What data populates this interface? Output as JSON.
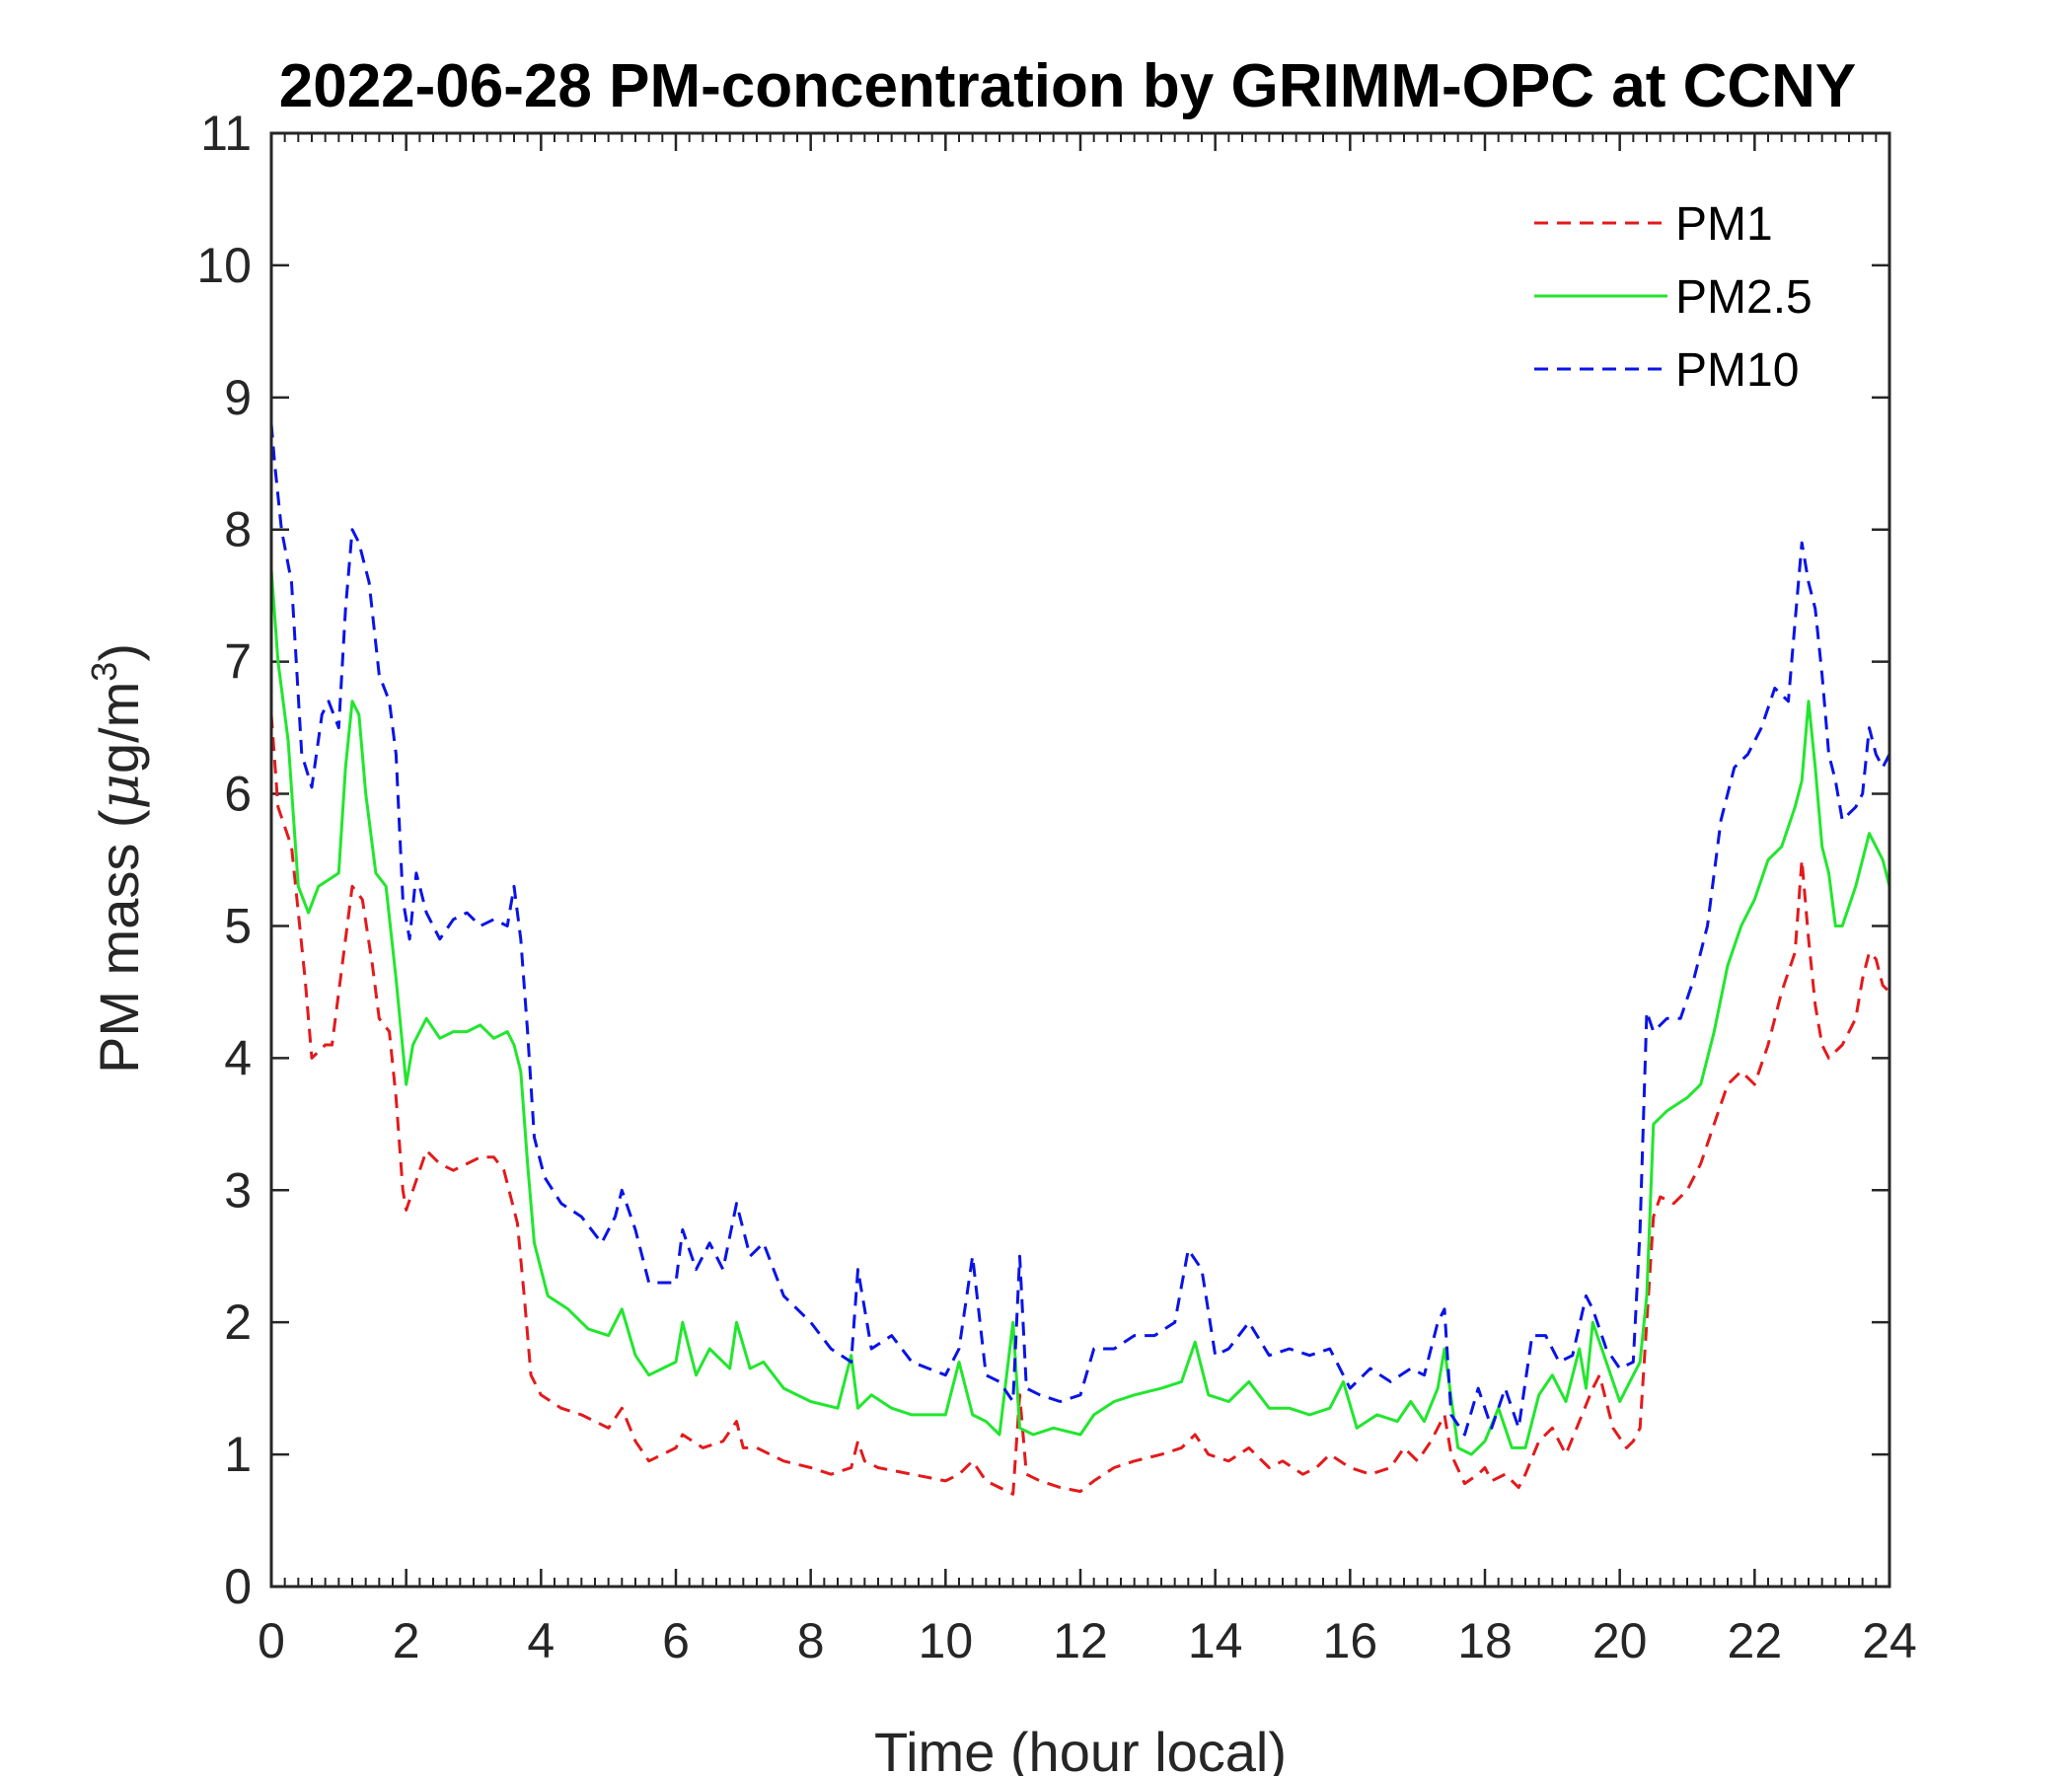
{
  "chart_data": {
    "type": "line",
    "title": "2022-06-28 PM-concentration by GRIMM-OPC at CCNY",
    "xlabel": "Time (hour local)",
    "ylabel": "PM mass (μg/m³)",
    "ylabel_parts": {
      "main": "PM mass (",
      "mu": "μ",
      "unit": "g/m",
      "sup": "3",
      "close": ")"
    },
    "xlim": [
      0,
      24
    ],
    "ylim": [
      0,
      11
    ],
    "xticks": [
      "0",
      "2",
      "4",
      "6",
      "8",
      "10",
      "12",
      "14",
      "16",
      "18",
      "20",
      "22",
      "24"
    ],
    "yticks": [
      "0",
      "1",
      "2",
      "3",
      "4",
      "5",
      "6",
      "7",
      "8",
      "9",
      "10",
      "11"
    ],
    "legend": {
      "location": "top-right"
    },
    "series": [
      {
        "name": "PM1",
        "color": "#e31a1c",
        "style": "dashed",
        "x": [
          0,
          0.1,
          0.3,
          0.5,
          0.6,
          0.8,
          0.9,
          1.1,
          1.2,
          1.35,
          1.5,
          1.6,
          1.75,
          1.85,
          1.95,
          2.0,
          2.1,
          2.3,
          2.5,
          2.7,
          2.9,
          3.1,
          3.3,
          3.45,
          3.55,
          3.65,
          3.75,
          3.85,
          4.0,
          4.3,
          4.6,
          5.0,
          5.2,
          5.4,
          5.6,
          5.8,
          6.0,
          6.1,
          6.4,
          6.7,
          6.9,
          7.0,
          7.2,
          7.6,
          8.0,
          8.3,
          8.6,
          8.7,
          8.8,
          9.0,
          9.5,
          10.0,
          10.2,
          10.4,
          10.6,
          10.8,
          11.0,
          11.1,
          11.2,
          11.4,
          11.7,
          12.0,
          12.2,
          12.5,
          12.8,
          13.2,
          13.5,
          13.7,
          13.9,
          14.2,
          14.5,
          14.8,
          15.0,
          15.3,
          15.5,
          15.7,
          16.0,
          16.3,
          16.6,
          16.8,
          17.0,
          17.2,
          17.4,
          17.5,
          17.7,
          17.9,
          18.0,
          18.1,
          18.3,
          18.5,
          18.6,
          18.8,
          19.0,
          19.2,
          19.4,
          19.6,
          19.7,
          19.9,
          20.1,
          20.2,
          20.3,
          20.4,
          20.5,
          20.6,
          20.8,
          21.0,
          21.2,
          21.4,
          21.6,
          21.8,
          22.0,
          22.2,
          22.4,
          22.6,
          22.7,
          22.8,
          22.9,
          23.0,
          23.1,
          23.2,
          23.3,
          23.5,
          23.6,
          23.7,
          23.8,
          23.9,
          24.0
        ],
        "values": [
          6.6,
          5.9,
          5.6,
          4.6,
          4.0,
          4.1,
          4.1,
          4.9,
          5.3,
          5.2,
          4.7,
          4.3,
          4.2,
          3.7,
          3.0,
          2.85,
          3.0,
          3.3,
          3.2,
          3.15,
          3.2,
          3.25,
          3.25,
          3.15,
          2.95,
          2.75,
          2.2,
          1.6,
          1.45,
          1.35,
          1.3,
          1.2,
          1.35,
          1.1,
          0.95,
          1.0,
          1.05,
          1.15,
          1.05,
          1.1,
          1.25,
          1.05,
          1.05,
          0.95,
          0.9,
          0.85,
          0.9,
          1.1,
          0.95,
          0.9,
          0.85,
          0.8,
          0.85,
          0.95,
          0.8,
          0.75,
          0.7,
          1.45,
          0.85,
          0.8,
          0.75,
          0.72,
          0.8,
          0.9,
          0.95,
          1.0,
          1.05,
          1.15,
          1.0,
          0.95,
          1.05,
          0.9,
          0.95,
          0.85,
          0.9,
          1.0,
          0.9,
          0.85,
          0.9,
          1.05,
          0.95,
          1.1,
          1.3,
          1.0,
          0.78,
          0.85,
          0.9,
          0.8,
          0.85,
          0.75,
          0.85,
          1.1,
          1.2,
          1.0,
          1.25,
          1.5,
          1.6,
          1.2,
          1.05,
          1.1,
          1.2,
          2.0,
          2.8,
          2.95,
          2.9,
          3.0,
          3.2,
          3.5,
          3.8,
          3.9,
          3.8,
          4.1,
          4.5,
          4.8,
          5.5,
          4.9,
          4.4,
          4.1,
          4.0,
          4.05,
          4.1,
          4.3,
          4.6,
          4.8,
          4.75,
          4.55,
          4.5
        ]
      },
      {
        "name": "PM2.5",
        "color": "#22e62e",
        "style": "solid",
        "x": [
          0,
          0.1,
          0.25,
          0.4,
          0.55,
          0.7,
          0.85,
          1.0,
          1.1,
          1.2,
          1.3,
          1.4,
          1.55,
          1.7,
          1.85,
          2.0,
          2.1,
          2.3,
          2.5,
          2.7,
          2.9,
          3.1,
          3.3,
          3.5,
          3.6,
          3.7,
          3.8,
          3.9,
          4.1,
          4.4,
          4.7,
          5.0,
          5.2,
          5.4,
          5.6,
          5.8,
          6.0,
          6.1,
          6.3,
          6.5,
          6.8,
          6.9,
          7.1,
          7.3,
          7.6,
          8.0,
          8.4,
          8.6,
          8.7,
          8.9,
          9.2,
          9.5,
          10.0,
          10.2,
          10.4,
          10.6,
          10.8,
          11.0,
          11.1,
          11.3,
          11.6,
          12.0,
          12.2,
          12.5,
          12.8,
          13.2,
          13.5,
          13.7,
          13.9,
          14.2,
          14.5,
          14.8,
          15.1,
          15.4,
          15.7,
          15.9,
          16.1,
          16.4,
          16.7,
          16.9,
          17.1,
          17.3,
          17.4,
          17.6,
          17.8,
          18.0,
          18.2,
          18.4,
          18.6,
          18.8,
          19.0,
          19.2,
          19.4,
          19.5,
          19.6,
          19.8,
          20.0,
          20.2,
          20.3,
          20.4,
          20.5,
          20.7,
          21.0,
          21.2,
          21.4,
          21.6,
          21.8,
          22.0,
          22.2,
          22.4,
          22.6,
          22.7,
          22.8,
          22.9,
          23.0,
          23.1,
          23.2,
          23.3,
          23.5,
          23.7,
          23.9,
          24.0
        ],
        "values": [
          7.7,
          7.0,
          6.4,
          5.3,
          5.1,
          5.3,
          5.35,
          5.4,
          6.2,
          6.7,
          6.6,
          6.0,
          5.4,
          5.3,
          4.6,
          3.8,
          4.1,
          4.3,
          4.15,
          4.2,
          4.2,
          4.25,
          4.15,
          4.2,
          4.1,
          3.9,
          3.2,
          2.6,
          2.2,
          2.1,
          1.95,
          1.9,
          2.1,
          1.75,
          1.6,
          1.65,
          1.7,
          2.0,
          1.6,
          1.8,
          1.65,
          2.0,
          1.65,
          1.7,
          1.5,
          1.4,
          1.35,
          1.75,
          1.35,
          1.45,
          1.35,
          1.3,
          1.3,
          1.7,
          1.3,
          1.25,
          1.15,
          2.0,
          1.2,
          1.15,
          1.2,
          1.15,
          1.3,
          1.4,
          1.45,
          1.5,
          1.55,
          1.85,
          1.45,
          1.4,
          1.55,
          1.35,
          1.35,
          1.3,
          1.35,
          1.55,
          1.2,
          1.3,
          1.25,
          1.4,
          1.25,
          1.5,
          1.8,
          1.05,
          1.0,
          1.1,
          1.35,
          1.05,
          1.05,
          1.45,
          1.6,
          1.4,
          1.8,
          1.5,
          2.0,
          1.7,
          1.4,
          1.6,
          1.7,
          2.2,
          3.5,
          3.6,
          3.7,
          3.8,
          4.2,
          4.7,
          5.0,
          5.2,
          5.5,
          5.6,
          5.9,
          6.1,
          6.7,
          6.2,
          5.6,
          5.4,
          5.0,
          5.0,
          5.3,
          5.7,
          5.5,
          5.3
        ]
      },
      {
        "name": "PM10",
        "color": "#0a14e6",
        "style": "dashed",
        "x": [
          0,
          0.05,
          0.15,
          0.3,
          0.45,
          0.6,
          0.75,
          0.85,
          1.0,
          1.1,
          1.2,
          1.3,
          1.45,
          1.6,
          1.75,
          1.85,
          1.95,
          2.05,
          2.15,
          2.3,
          2.5,
          2.7,
          2.9,
          3.1,
          3.3,
          3.5,
          3.6,
          3.7,
          3.8,
          3.9,
          4.05,
          4.3,
          4.6,
          4.9,
          5.1,
          5.2,
          5.4,
          5.6,
          5.8,
          6.0,
          6.1,
          6.3,
          6.5,
          6.7,
          6.9,
          7.1,
          7.3,
          7.6,
          8.0,
          8.3,
          8.6,
          8.7,
          8.9,
          9.2,
          9.5,
          10.0,
          10.2,
          10.4,
          10.6,
          10.8,
          11.0,
          11.1,
          11.2,
          11.4,
          11.7,
          12.0,
          12.2,
          12.5,
          12.8,
          13.1,
          13.4,
          13.6,
          13.8,
          14.0,
          14.2,
          14.5,
          14.8,
          15.1,
          15.4,
          15.7,
          16.0,
          16.3,
          16.6,
          16.9,
          17.1,
          17.3,
          17.4,
          17.5,
          17.7,
          17.9,
          18.1,
          18.3,
          18.5,
          18.7,
          18.9,
          19.1,
          19.3,
          19.5,
          19.6,
          19.8,
          20.0,
          20.2,
          20.3,
          20.4,
          20.5,
          20.7,
          20.9,
          21.1,
          21.3,
          21.5,
          21.7,
          21.9,
          22.1,
          22.3,
          22.5,
          22.6,
          22.7,
          22.8,
          22.9,
          23.0,
          23.1,
          23.2,
          23.3,
          23.5,
          23.6,
          23.7,
          23.8,
          23.9,
          24.0
        ],
        "values": [
          8.8,
          8.5,
          8.0,
          7.6,
          6.3,
          6.05,
          6.6,
          6.7,
          6.5,
          7.4,
          8.0,
          7.9,
          7.6,
          6.9,
          6.7,
          6.3,
          5.2,
          4.9,
          5.4,
          5.1,
          4.9,
          5.05,
          5.1,
          5.0,
          5.05,
          5.0,
          5.3,
          4.9,
          4.2,
          3.4,
          3.1,
          2.9,
          2.8,
          2.6,
          2.8,
          3.0,
          2.7,
          2.3,
          2.3,
          2.3,
          2.7,
          2.4,
          2.6,
          2.4,
          2.9,
          2.5,
          2.6,
          2.2,
          2.0,
          1.8,
          1.7,
          2.4,
          1.8,
          1.9,
          1.7,
          1.6,
          1.8,
          2.5,
          1.6,
          1.55,
          1.4,
          2.5,
          1.5,
          1.45,
          1.4,
          1.45,
          1.8,
          1.8,
          1.9,
          1.9,
          2.0,
          2.55,
          2.4,
          1.75,
          1.8,
          2.0,
          1.75,
          1.8,
          1.75,
          1.8,
          1.5,
          1.65,
          1.55,
          1.65,
          1.6,
          2.0,
          2.1,
          1.3,
          1.15,
          1.5,
          1.2,
          1.5,
          1.2,
          1.9,
          1.9,
          1.7,
          1.75,
          2.2,
          2.1,
          1.8,
          1.65,
          1.7,
          2.7,
          4.35,
          4.2,
          4.3,
          4.3,
          4.6,
          5.0,
          5.8,
          6.2,
          6.3,
          6.5,
          6.8,
          6.7,
          7.3,
          7.9,
          7.6,
          7.4,
          6.9,
          6.3,
          6.1,
          5.8,
          5.9,
          6.0,
          6.5,
          6.3,
          6.2,
          6.3
        ]
      }
    ]
  }
}
